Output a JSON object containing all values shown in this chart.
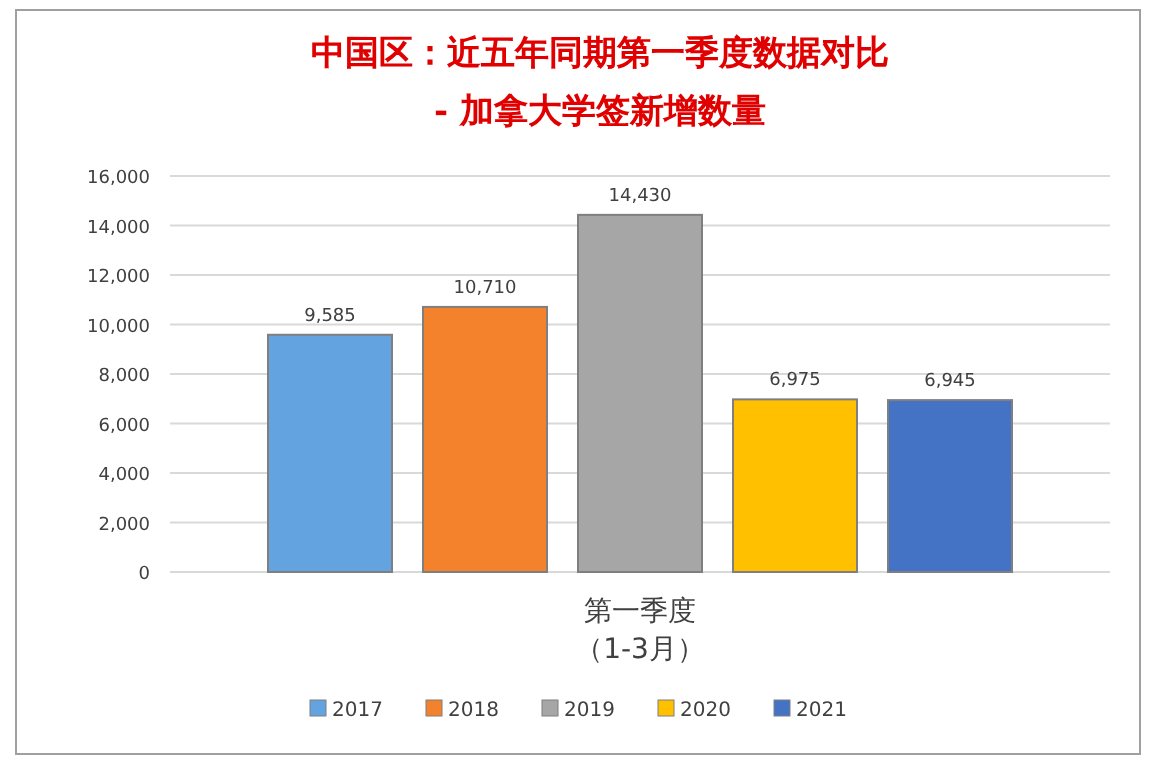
{
  "chart_data": {
    "type": "bar",
    "title": "中国区：近五年同期第一季度数据对比",
    "subtitle": "- 加拿大学签新增数量",
    "categories": [
      "第一季度（1-3月）"
    ],
    "series": [
      {
        "name": "2017",
        "color": "#62a3e0",
        "values": [
          9585
        ],
        "value_labels": [
          "9,585"
        ]
      },
      {
        "name": "2018",
        "color": "#f4812b",
        "values": [
          10710
        ],
        "value_labels": [
          "10,710"
        ]
      },
      {
        "name": "2019",
        "color": "#a6a6a6",
        "values": [
          14430
        ],
        "value_labels": [
          "14,430"
        ]
      },
      {
        "name": "2020",
        "color": "#ffc000",
        "values": [
          6975
        ],
        "value_labels": [
          "6,975"
        ]
      },
      {
        "name": "2021",
        "color": "#4472c4",
        "values": [
          6945
        ],
        "value_labels": [
          "6,945"
        ]
      }
    ],
    "ylim": [
      0,
      16000
    ],
    "yticks": [
      {
        "value": 0,
        "label": "0"
      },
      {
        "value": 2000,
        "label": "2,000"
      },
      {
        "value": 4000,
        "label": "4,000"
      },
      {
        "value": 6000,
        "label": "6,000"
      },
      {
        "value": 8000,
        "label": "8,000"
      },
      {
        "value": 10000,
        "label": "10,000"
      },
      {
        "value": 12000,
        "label": "12,000"
      },
      {
        "value": 14000,
        "label": "14,000"
      },
      {
        "value": 16000,
        "label": "16,000"
      }
    ],
    "grid": "y",
    "legend": "bottom"
  }
}
